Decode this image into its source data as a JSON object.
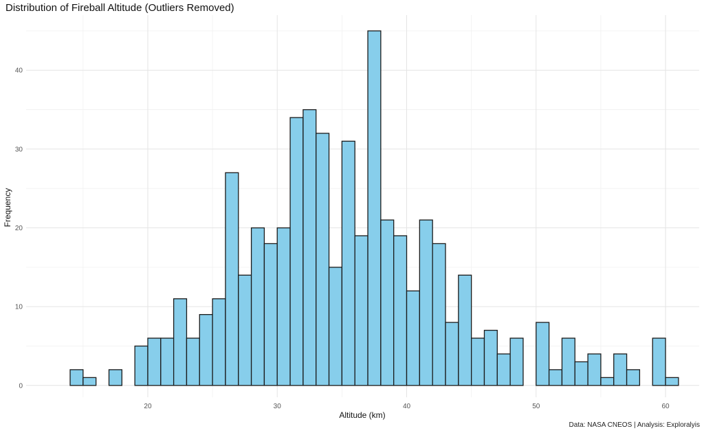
{
  "chart_data": {
    "type": "bar",
    "title": "Distribution of Fireball Altitude (Outliers Removed)",
    "xlabel": "Altitude (km)",
    "ylabel": "Frequency",
    "caption": "Data: NASA CNEOS | Analysis: Exploralyis",
    "bin_width": 1,
    "bins_start": [
      14,
      15,
      16,
      17,
      18,
      19,
      20,
      21,
      22,
      23,
      24,
      25,
      26,
      27,
      28,
      29,
      30,
      31,
      32,
      33,
      34,
      35,
      36,
      37,
      38,
      39,
      40,
      41,
      42,
      43,
      44,
      45,
      46,
      47,
      48,
      49,
      50,
      51,
      52,
      53,
      54,
      55,
      56,
      57,
      58,
      59,
      60
    ],
    "values": [
      2,
      1,
      0,
      2,
      0,
      5,
      6,
      6,
      11,
      6,
      9,
      11,
      27,
      14,
      20,
      18,
      20,
      34,
      35,
      32,
      15,
      31,
      19,
      45,
      21,
      19,
      12,
      21,
      18,
      8,
      14,
      6,
      7,
      4,
      6,
      0,
      8,
      2,
      6,
      3,
      4,
      1,
      4,
      2,
      0,
      6,
      1
    ],
    "xlim": [
      10.6,
      62.6
    ],
    "ylim": [
      -1.5,
      47
    ],
    "x_ticks": [
      20,
      30,
      40,
      50,
      60
    ],
    "y_ticks": [
      0,
      10,
      20,
      30,
      40
    ],
    "bar_color": "#87CEEB",
    "bar_edge": "#1a1a1a",
    "grid": true,
    "legend": "none"
  }
}
